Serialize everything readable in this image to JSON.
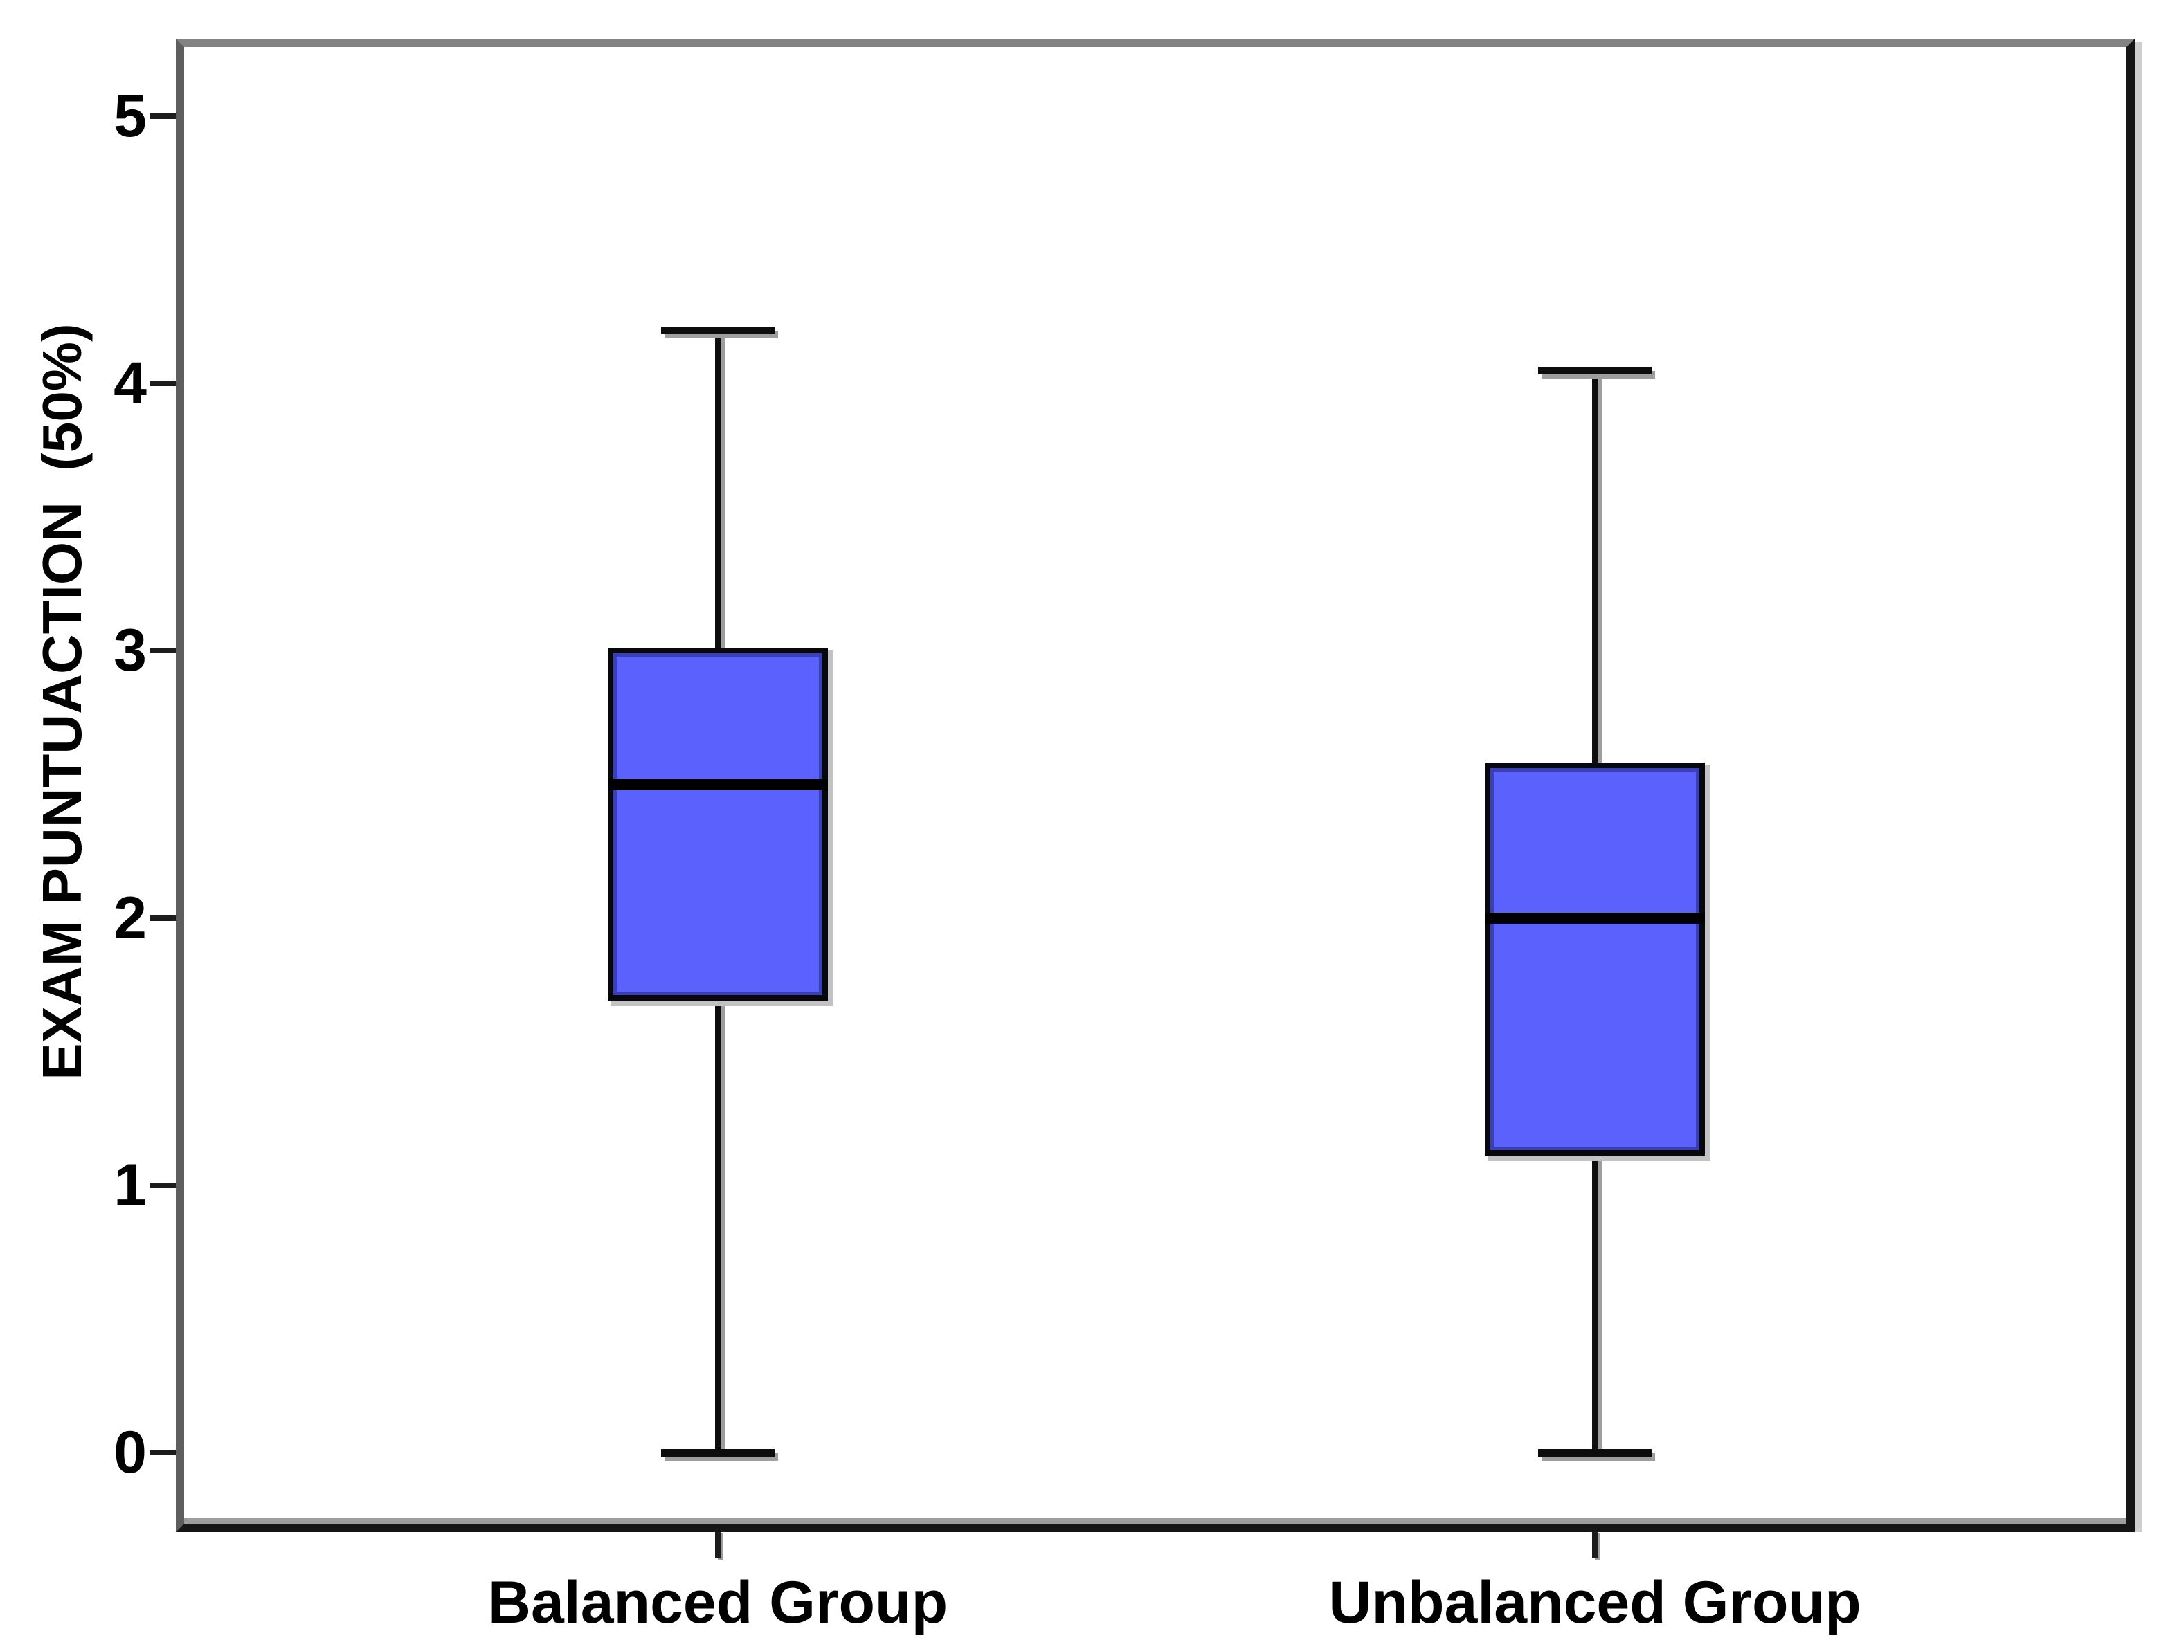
{
  "chart_data": {
    "type": "box",
    "title": "",
    "xlabel": "",
    "ylabel": "EXAM PUNTUACTION  (50%)",
    "categories": [
      "Balanced Group",
      "Unbalanced Group"
    ],
    "y_ticks": [
      "0",
      "1",
      "2",
      "3",
      "4",
      "5"
    ],
    "ylim": [
      -0.27,
      5.26
    ],
    "grid": false,
    "legend": false,
    "series": [
      {
        "name": "Balanced Group",
        "min": 0,
        "q1": 1.7,
        "median": 2.5,
        "q3": 3.0,
        "max": 4.2
      },
      {
        "name": "Unbalanced Group",
        "min": 0,
        "q1": 1.12,
        "median": 2.0,
        "q3": 2.57,
        "max": 4.05
      }
    ],
    "colors": {
      "box_fill": "#5B61FC",
      "box_border": "#07080e",
      "whisker": "#0d0d0d",
      "frame_top": "#838383",
      "shadow": "#9e9e9e",
      "background": "#ffffff"
    }
  }
}
